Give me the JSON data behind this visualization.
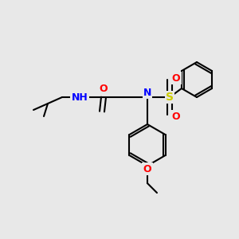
{
  "background_color": "#e8e8e8",
  "bond_color": "#000000",
  "atom_colors": {
    "N": "#0000ff",
    "O": "#ff0000",
    "S": "#cccc00",
    "H_label": "#008080",
    "C": "#000000"
  },
  "figsize": [
    3.0,
    3.0
  ],
  "dpi": 100
}
